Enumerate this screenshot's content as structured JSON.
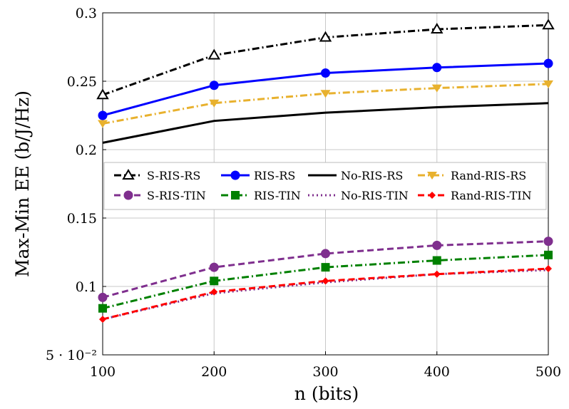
{
  "chart_data": {
    "type": "line",
    "xlabel": "n (bits)",
    "ylabel": "Max-Min EE (b/J/Hz)",
    "xlim": [
      100,
      500
    ],
    "ylim": [
      0.05,
      0.3
    ],
    "x_ticks": [
      "100",
      "200",
      "300",
      "400",
      "500"
    ],
    "y_ticks": [
      "5 · 10⁻²",
      "0.1",
      "0.15",
      "0.2",
      "0.25",
      "0.3"
    ],
    "grid": true,
    "legend_position": "inside-middle",
    "x": [
      100,
      200,
      300,
      400,
      500
    ],
    "series": [
      {
        "name": "S-RIS-RS",
        "values": [
          0.24,
          0.269,
          0.282,
          0.288,
          0.291
        ],
        "color": "#000000",
        "marker": "triangle-open",
        "dash": "dashdot"
      },
      {
        "name": "RIS-RS",
        "values": [
          0.225,
          0.247,
          0.256,
          0.26,
          0.263
        ],
        "color": "#0000ff",
        "marker": "circle",
        "dash": "solid"
      },
      {
        "name": "No-RIS-RS",
        "values": [
          0.205,
          0.221,
          0.227,
          0.231,
          0.234
        ],
        "color": "#000000",
        "marker": "none",
        "dash": "solid"
      },
      {
        "name": "Rand-RIS-RS",
        "values": [
          0.219,
          0.234,
          0.241,
          0.245,
          0.248
        ],
        "color": "#e8b12e",
        "marker": "triangle-down",
        "dash": "dashdot"
      },
      {
        "name": "S-RIS-TIN",
        "values": [
          0.092,
          0.114,
          0.124,
          0.13,
          0.133
        ],
        "color": "#7f2f8e",
        "marker": "circle",
        "dash": "dashed"
      },
      {
        "name": "RIS-TIN",
        "values": [
          0.084,
          0.104,
          0.114,
          0.119,
          0.123
        ],
        "color": "#008000",
        "marker": "square",
        "dash": "dashdot"
      },
      {
        "name": "No-RIS-TIN",
        "values": [
          0.076,
          0.095,
          0.103,
          0.109,
          0.112
        ],
        "color": "#7f2f8e",
        "marker": "none",
        "dash": "dotted"
      },
      {
        "name": "Rand-RIS-TIN",
        "values": [
          0.076,
          0.096,
          0.104,
          0.109,
          0.113
        ],
        "color": "#ff0000",
        "marker": "diamond",
        "dash": "dashed"
      }
    ]
  }
}
